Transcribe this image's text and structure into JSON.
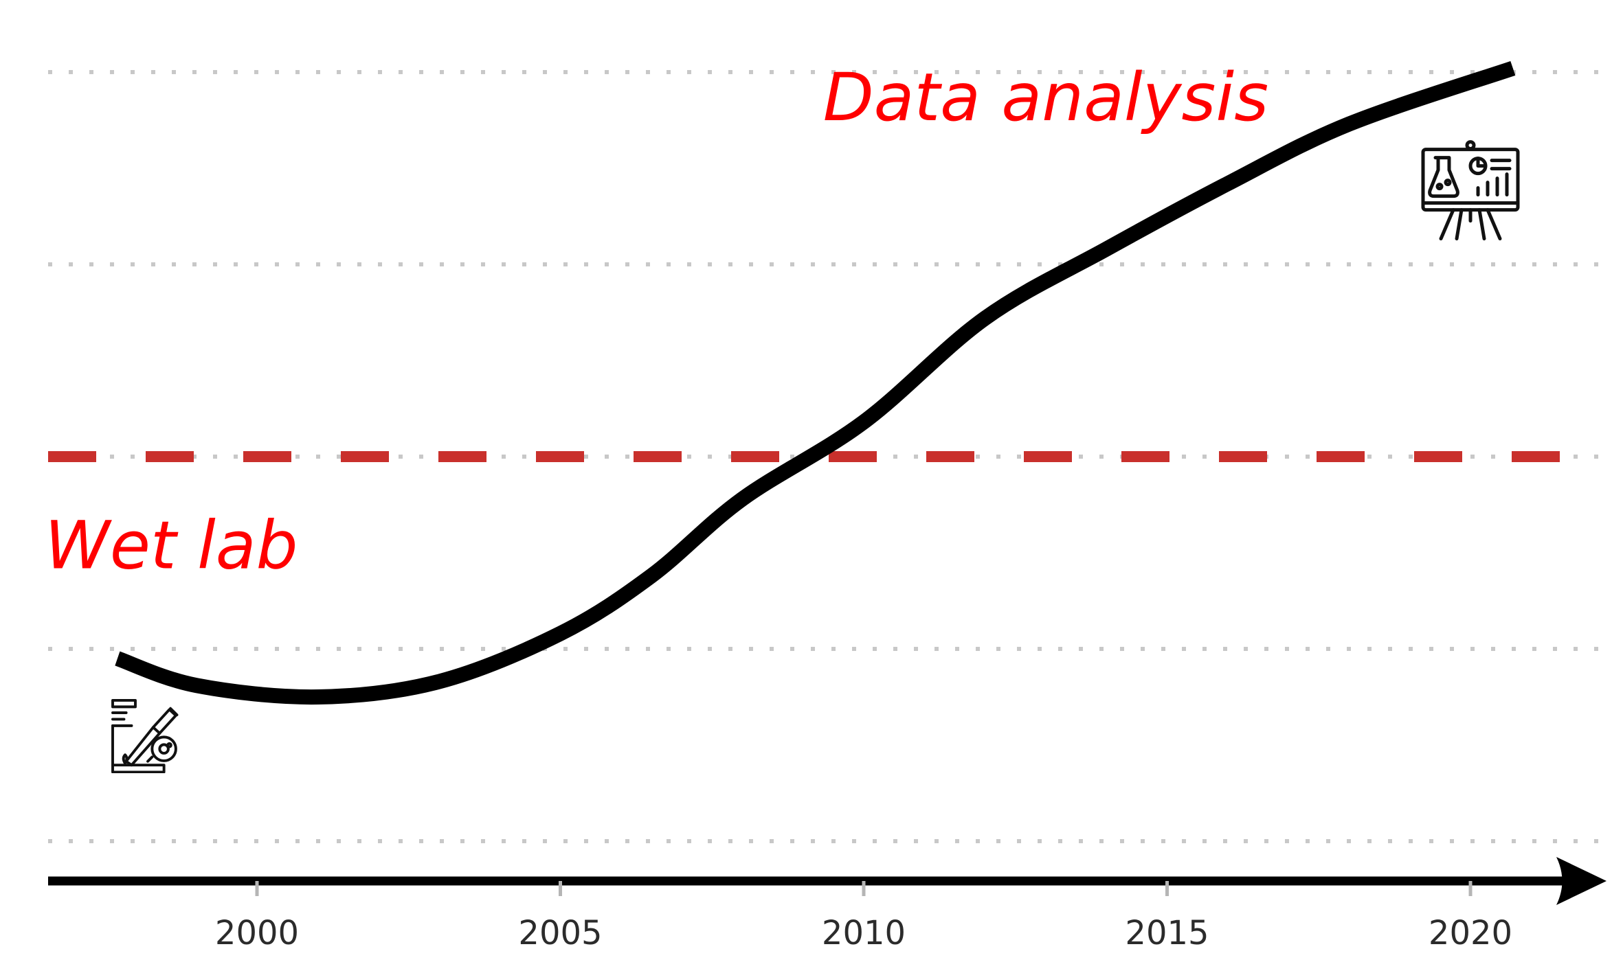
{
  "chart_data": {
    "type": "line",
    "x_ticks": [
      2000,
      2005,
      2010,
      2015,
      2020
    ],
    "xlim": [
      1996.5,
      2022
    ],
    "ylim": [
      0,
      4.5
    ],
    "grid": true,
    "threshold": {
      "y": 2.0,
      "color": "#c9302c"
    },
    "series": [
      {
        "color": "#000000",
        "x": [
          1997.7,
          1999,
          2001,
          2003,
          2005,
          2006.5,
          2008,
          2010,
          2012,
          2014,
          2016,
          2018,
          2020.7
        ],
        "y": [
          0.95,
          0.81,
          0.75,
          0.83,
          1.08,
          1.38,
          1.78,
          2.18,
          2.72,
          3.08,
          3.42,
          3.73,
          4.02
        ]
      }
    ],
    "annotations": [
      {
        "text": "Data analysis",
        "x": 2013,
        "y": 3.75,
        "color": "#ff0000"
      },
      {
        "text": "Wet lab",
        "x": 1996.5,
        "y": 1.42,
        "color": "#ff0000"
      }
    ],
    "icons": [
      {
        "name": "lab-dropper-icon",
        "x": 1998.2,
        "y": 0.55
      },
      {
        "name": "lab-presentation-icon",
        "x": 2020,
        "y": 3.38
      }
    ]
  }
}
